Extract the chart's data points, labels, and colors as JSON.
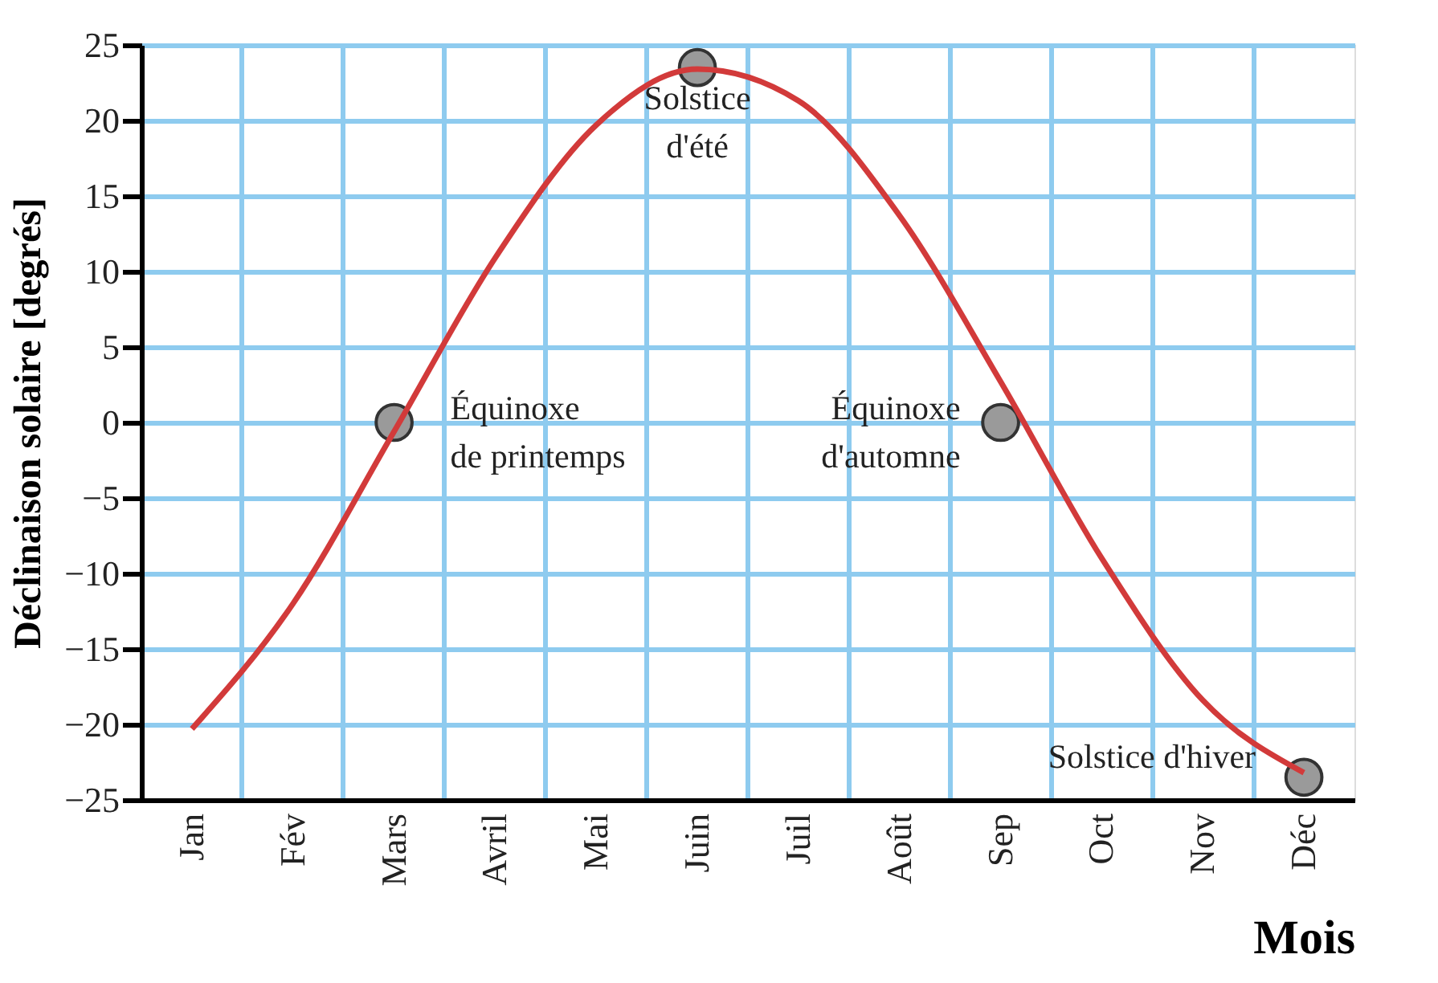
{
  "chart_data": {
    "type": "line",
    "xlabel": "Mois",
    "ylabel": "Déclinaison solaire [degrés]",
    "categories": [
      "Jan",
      "Fév",
      "Mars",
      "Avril",
      "Mai",
      "Juin",
      "Juil",
      "Août",
      "Sep",
      "Oct",
      "Nov",
      "Déc"
    ],
    "series": [
      {
        "color": "#d23a3a",
        "values": [
          -20.3,
          -12.0,
          -0.6,
          10.9,
          19.7,
          23.4,
          21.3,
          13.7,
          2.7,
          -9.0,
          -18.4,
          -23.2
        ]
      },
      {
        "type": "scatter",
        "color": "#9a9a9a",
        "marker": "circle",
        "x": [
          "Mars",
          "Juin",
          "Sep",
          "Déc"
        ],
        "values": [
          0,
          23.5,
          0,
          -23.5
        ]
      }
    ],
    "annotations": [
      {
        "text": "Équinoxe\nde printemps",
        "x": "Mars",
        "y": 0
      },
      {
        "text": "Solstice\nd'été",
        "x": "Juin",
        "y": 23.5
      },
      {
        "text": "Équinoxe\nd'automne",
        "x": "Sep",
        "y": 0
      },
      {
        "text": "Solstice d'hiver",
        "x": "Déc",
        "y": -23.5
      }
    ],
    "ylim": [
      -25,
      25
    ],
    "yticks": [
      -25,
      -20,
      -15,
      -10,
      -5,
      0,
      5,
      10,
      15,
      20,
      25
    ],
    "grid": true,
    "line_style": "solid"
  }
}
